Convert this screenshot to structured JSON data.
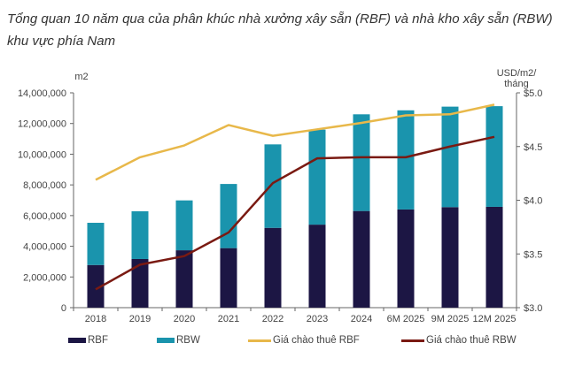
{
  "chart_data": {
    "type": "bar+line",
    "title": "Tổng quan 10 năm qua của phân khúc nhà xưởng xây sẵn (RBF) và nhà kho xây sẵn (RBW) khu vực phía Nam",
    "categories": [
      "2018",
      "2019",
      "2020",
      "2021",
      "2022",
      "2023",
      "2024",
      "6M 2025",
      "9M 2025",
      "12M 2025"
    ],
    "left_axis": {
      "label": "m2",
      "range": [
        0,
        14000000
      ],
      "ticks": [
        "0",
        "2,000,000",
        "4,000,000",
        "6,000,000",
        "8,000,000",
        "10,000,000",
        "12,000,000",
        "14,000,000"
      ]
    },
    "right_axis": {
      "label": "USD/m2/ tháng",
      "range": [
        3.0,
        5.0
      ],
      "ticks": [
        "$3.0",
        "$3.5",
        "$4.0",
        "$4.5",
        "$5.0"
      ]
    },
    "bar_series": [
      {
        "name": "RBF",
        "color": "#1c1644",
        "values": [
          2780000,
          3170000,
          3740000,
          3880000,
          5200000,
          5410000,
          6300000,
          6400000,
          6550000,
          6570000
        ]
      },
      {
        "name": "RBW",
        "color": "#1a94ad",
        "values": [
          2750000,
          3110000,
          3250000,
          4180000,
          5440000,
          6190000,
          6300000,
          6460000,
          6550000,
          6560000
        ]
      }
    ],
    "line_series": [
      {
        "name": "Giá chào thuê RBF",
        "color": "#e8b84a",
        "values": [
          4.19,
          4.4,
          4.51,
          4.7,
          4.6,
          4.66,
          4.72,
          4.79,
          4.8,
          4.89
        ]
      },
      {
        "name": "Giá chào thuê RBW",
        "color": "#7a1a12",
        "values": [
          3.17,
          3.4,
          3.48,
          3.7,
          4.16,
          4.39,
          4.4,
          4.4,
          4.5,
          4.59
        ]
      }
    ],
    "grid": false,
    "legend_position": "bottom"
  }
}
